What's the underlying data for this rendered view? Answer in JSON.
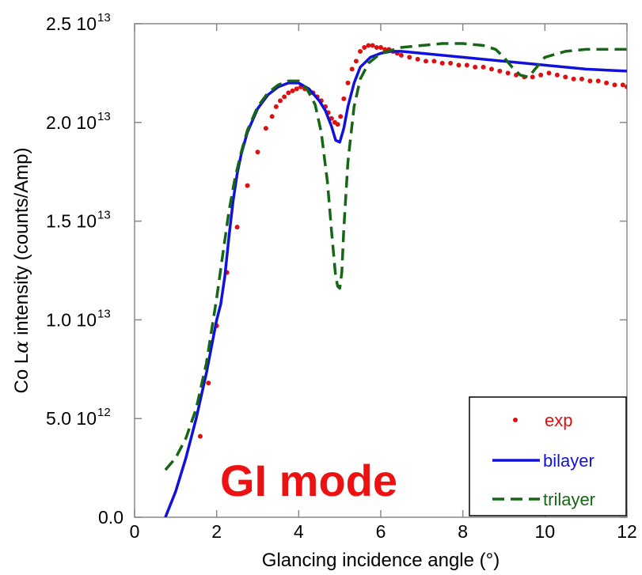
{
  "chart_data": {
    "type": "line",
    "title": "",
    "xlabel": "Glancing incidence angle (°)",
    "ylabel_prefix": "Co L",
    "ylabel_symbol": "α",
    "ylabel_suffix": " intensity (counts/Amp)",
    "xlim": [
      0,
      12
    ],
    "ylim": [
      0,
      25000000000000.0
    ],
    "x_ticks": [
      {
        "value": 0,
        "label": "0"
      },
      {
        "value": 2,
        "label": "2"
      },
      {
        "value": 4,
        "label": "4"
      },
      {
        "value": 6,
        "label": "6"
      },
      {
        "value": 8,
        "label": "8"
      },
      {
        "value": 10,
        "label": "10"
      },
      {
        "value": 12,
        "label": "12"
      }
    ],
    "y_ticks": [
      {
        "value": 0,
        "label": "0.0",
        "exp": ""
      },
      {
        "value": 5000000000000.0,
        "label": "5.0 10",
        "exp": "12"
      },
      {
        "value": 10000000000000.0,
        "label": "1.0 10",
        "exp": "13"
      },
      {
        "value": 15000000000000.0,
        "label": "1.5 10",
        "exp": "13"
      },
      {
        "value": 20000000000000.0,
        "label": "2.0 10",
        "exp": "13"
      },
      {
        "value": 25000000000000.0,
        "label": "2.5 10",
        "exp": "13"
      }
    ],
    "grid": false,
    "legend_position": "bottom-right",
    "annotation": "GI mode",
    "series": [
      {
        "name": "exp",
        "style": "points",
        "color": "#dd1111",
        "x": [
          1.6,
          1.8,
          2.0,
          2.25,
          2.5,
          2.75,
          3.0,
          3.2,
          3.35,
          3.45,
          3.55,
          3.65,
          3.75,
          3.85,
          3.95,
          4.05,
          4.15,
          4.25,
          4.35,
          4.45,
          4.55,
          4.65,
          4.72,
          4.8,
          4.88,
          4.95,
          5.02,
          5.1,
          5.2,
          5.3,
          5.4,
          5.5,
          5.6,
          5.7,
          5.8,
          5.9,
          6.0,
          6.1,
          6.2,
          6.3,
          6.4,
          6.5,
          6.7,
          6.9,
          7.1,
          7.3,
          7.5,
          7.7,
          7.9,
          8.1,
          8.3,
          8.5,
          8.7,
          8.9,
          9.1,
          9.3,
          9.5,
          9.7,
          9.9,
          10.1,
          10.3,
          10.5,
          10.7,
          10.9,
          11.1,
          11.3,
          11.5,
          11.7,
          11.9,
          12.0
        ],
        "y": [
          4100000000000.0,
          6800000000000.0,
          9700000000000.0,
          12400000000000.0,
          14700000000000.0,
          16800000000000.0,
          18500000000000.0,
          19700000000000.0,
          20300000000000.0,
          20800000000000.0,
          21100000000000.0,
          21300000000000.0,
          21500000000000.0,
          21600000000000.0,
          21700000000000.0,
          21800000000000.0,
          21700000000000.0,
          21600000000000.0,
          21500000000000.0,
          21300000000000.0,
          21100000000000.0,
          20800000000000.0,
          20500000000000.0,
          20200000000000.0,
          20000000000000.0,
          19900000000000.0,
          20300000000000.0,
          21200000000000.0,
          22000000000000.0,
          22700000000000.0,
          23100000000000.0,
          23600000000000.0,
          23800000000000.0,
          23900000000000.0,
          23900000000000.0,
          23800000000000.0,
          23800000000000.0,
          23700000000000.0,
          23700000000000.0,
          23600000000000.0,
          23500000000000.0,
          23400000000000.0,
          23300000000000.0,
          23200000000000.0,
          23100000000000.0,
          23100000000000.0,
          23000000000000.0,
          23000000000000.0,
          22900000000000.0,
          22900000000000.0,
          22800000000000.0,
          22800000000000.0,
          22700000000000.0,
          22600000000000.0,
          22500000000000.0,
          22400000000000.0,
          22300000000000.0,
          22300000000000.0,
          22400000000000.0,
          22500000000000.0,
          22400000000000.0,
          22300000000000.0,
          22200000000000.0,
          22200000000000.0,
          22100000000000.0,
          22100000000000.0,
          22000000000000.0,
          21900000000000.0,
          21900000000000.0,
          21800000000000.0
        ]
      },
      {
        "name": "bilayer",
        "style": "solid",
        "color": "#1111dd",
        "x": [
          0.75,
          1.0,
          1.25,
          1.5,
          1.75,
          2.0,
          2.1,
          2.2,
          2.3,
          2.4,
          2.5,
          2.6,
          2.75,
          3.0,
          3.25,
          3.5,
          3.75,
          4.0,
          4.25,
          4.5,
          4.65,
          4.8,
          4.9,
          5.0,
          5.1,
          5.2,
          5.35,
          5.5,
          5.75,
          6.0,
          6.25,
          6.5,
          7.0,
          8.0,
          9.0,
          10.0,
          11.0,
          12.0
        ],
        "y": [
          0,
          1300000000000.0,
          3000000000000.0,
          5000000000000.0,
          7300000000000.0,
          10000000000000.0,
          10800000000000.0,
          12200000000000.0,
          14200000000000.0,
          16000000000000.0,
          17400000000000.0,
          18400000000000.0,
          19500000000000.0,
          20700000000000.0,
          21400000000000.0,
          21800000000000.0,
          22000000000000.0,
          22000000000000.0,
          21700000000000.0,
          21100000000000.0,
          20600000000000.0,
          19800000000000.0,
          19100000000000.0,
          19000000000000.0,
          19700000000000.0,
          20800000000000.0,
          22000000000000.0,
          22800000000000.0,
          23300000000000.0,
          23500000000000.0,
          23600000000000.0,
          23600000000000.0,
          23500000000000.0,
          23300000000000.0,
          23100000000000.0,
          22900000000000.0,
          22700000000000.0,
          22600000000000.0
        ]
      },
      {
        "name": "trilayer",
        "style": "dashed",
        "color": "#156615",
        "x": [
          0.75,
          1.0,
          1.25,
          1.5,
          1.75,
          2.0,
          2.15,
          2.3,
          2.45,
          2.6,
          2.75,
          3.0,
          3.25,
          3.5,
          3.75,
          4.0,
          4.2,
          4.4,
          4.55,
          4.7,
          4.8,
          4.9,
          4.95,
          5.0,
          5.05,
          5.1,
          5.2,
          5.35,
          5.5,
          5.7,
          6.0,
          6.5,
          7.0,
          7.5,
          8.0,
          8.5,
          8.8,
          9.0,
          9.2,
          9.4,
          9.6,
          9.8,
          10.0,
          10.5,
          11.0,
          11.5,
          12.0
        ],
        "y": [
          2400000000000.0,
          3000000000000.0,
          4000000000000.0,
          5500000000000.0,
          7800000000000.0,
          11100000000000.0,
          13300000000000.0,
          15500000000000.0,
          17200000000000.0,
          18500000000000.0,
          19600000000000.0,
          20800000000000.0,
          21500000000000.0,
          21900000000000.0,
          22100000000000.0,
          22100000000000.0,
          21700000000000.0,
          20900000000000.0,
          19500000000000.0,
          17000000000000.0,
          14500000000000.0,
          12200000000000.0,
          11700000000000.0,
          11600000000000.0,
          12400000000000.0,
          14600000000000.0,
          18000000000000.0,
          20800000000000.0,
          22200000000000.0,
          23000000000000.0,
          23500000000000.0,
          23800000000000.0,
          23900000000000.0,
          24000000000000.0,
          24000000000000.0,
          23900000000000.0,
          23700000000000.0,
          23300000000000.0,
          22800000000000.0,
          22400000000000.0,
          22300000000000.0,
          22800000000000.0,
          23300000000000.0,
          23600000000000.0,
          23700000000000.0,
          23700000000000.0,
          23700000000000.0
        ]
      }
    ]
  }
}
